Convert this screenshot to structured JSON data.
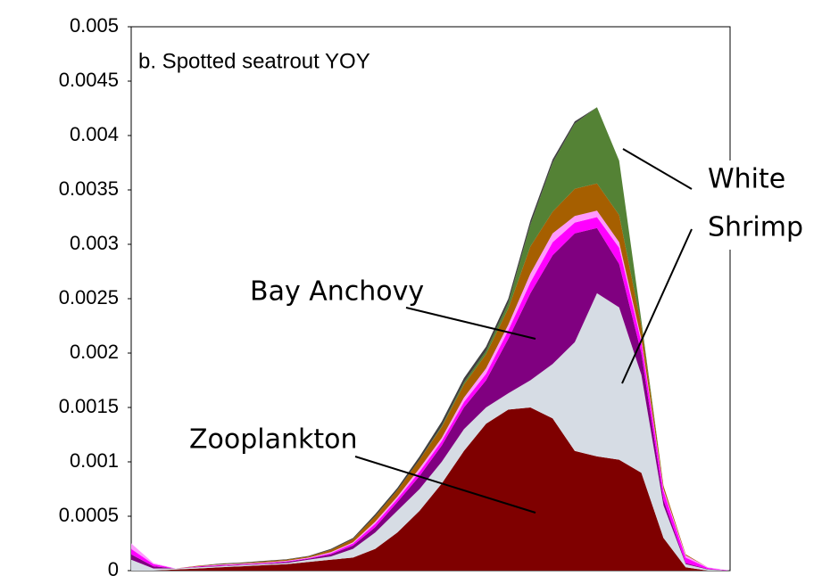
{
  "chart_data": {
    "type": "stacked-area",
    "title": "b. Spotted seatrout YOY",
    "ylim": [
      0,
      0.005
    ],
    "yticks": [
      0,
      0.0005,
      0.001,
      0.0015,
      0.002,
      0.0025,
      0.003,
      0.0035,
      0.004,
      0.0045,
      0.005
    ],
    "series": [
      {
        "color": "#7f0000",
        "values": [
          0,
          0,
          1e-05,
          2e-05,
          3e-05,
          4e-05,
          5e-05,
          6e-05,
          8e-05,
          0.0001,
          0.00012,
          0.0002,
          0.00035,
          0.00055,
          0.0008,
          0.0011,
          0.00135,
          0.00148,
          0.0015,
          0.0014,
          0.0011,
          0.00105,
          0.00102,
          0.0009,
          0.0003,
          3e-05,
          0,
          0
        ]
      },
      {
        "color": "#d6dce4",
        "values": [
          0.0001,
          2e-05,
          1e-05,
          1e-05,
          1e-05,
          1e-05,
          1e-05,
          1e-05,
          2e-05,
          3e-05,
          8e-05,
          0.00015,
          0.0002,
          0.0002,
          0.0002,
          0.0002,
          0.00015,
          0.00015,
          0.00025,
          0.0005,
          0.001,
          0.0015,
          0.0014,
          0.0009,
          0.0003,
          3e-05,
          1e-05,
          0
        ]
      },
      {
        "color": "#800080",
        "values": [
          5e-05,
          2e-05,
          0,
          5e-06,
          5e-06,
          5e-06,
          5e-06,
          1e-05,
          1e-05,
          2e-05,
          3e-05,
          5e-05,
          8e-05,
          0.00012,
          0.00015,
          0.0002,
          0.00025,
          0.0005,
          0.0008,
          0.001,
          0.001,
          0.0006,
          0.0004,
          0.0002,
          5e-05,
          1e-05,
          5e-06,
          0
        ]
      },
      {
        "color": "#ff00ff",
        "values": [
          5e-05,
          2e-05,
          0,
          5e-06,
          5e-06,
          5e-06,
          5e-06,
          5e-06,
          5e-06,
          1e-05,
          2e-05,
          3e-05,
          3e-05,
          4e-05,
          4e-05,
          5e-05,
          6e-05,
          8e-05,
          0.0001,
          0.00012,
          0.0001,
          0.0001,
          0.00015,
          0.0001,
          8e-05,
          5e-05,
          1e-05,
          0
        ]
      },
      {
        "color": "#ff99ff",
        "values": [
          5e-05,
          1e-05,
          0,
          0,
          5e-06,
          5e-06,
          5e-06,
          5e-06,
          5e-06,
          1e-05,
          1e-05,
          2e-05,
          2e-05,
          3e-05,
          3e-05,
          4e-05,
          5e-05,
          5e-05,
          8e-05,
          8e-05,
          6e-05,
          6e-05,
          5e-05,
          3e-05,
          2e-05,
          2e-05,
          5e-06,
          0
        ]
      },
      {
        "color": "#a65f00",
        "values": [
          0,
          0,
          0,
          5e-06,
          5e-06,
          5e-06,
          1e-05,
          1e-05,
          1e-05,
          2e-05,
          3e-05,
          5e-05,
          6e-05,
          8e-05,
          0.0001,
          0.00012,
          0.00013,
          0.00015,
          0.00025,
          0.0002,
          0.00025,
          0.00025,
          0.00025,
          0.00012,
          3e-05,
          1e-05,
          0,
          0
        ]
      },
      {
        "color": "#548235",
        "values": [
          0,
          0,
          0,
          0,
          0,
          0,
          0,
          0,
          0,
          0,
          0,
          0,
          0,
          0,
          1e-05,
          2e-05,
          3e-05,
          5e-05,
          0.0002,
          0.00045,
          0.0006,
          0.0007,
          0.0005,
          5e-05,
          0,
          0,
          0,
          0
        ]
      },
      {
        "color": "#404040",
        "values": [
          0,
          0,
          0,
          0,
          5e-06,
          5e-06,
          5e-06,
          5e-06,
          5e-06,
          1e-05,
          1e-05,
          2e-05,
          2e-05,
          3e-05,
          4e-05,
          4e-05,
          4e-05,
          4e-05,
          4e-05,
          3e-05,
          2e-05,
          0,
          0,
          0,
          0,
          0,
          0,
          0
        ]
      }
    ],
    "annotations": [
      {
        "text": "Bay Anchovy"
      },
      {
        "text": "Zooplankton"
      },
      {
        "lines": [
          "White",
          "Shrimp"
        ]
      }
    ]
  }
}
